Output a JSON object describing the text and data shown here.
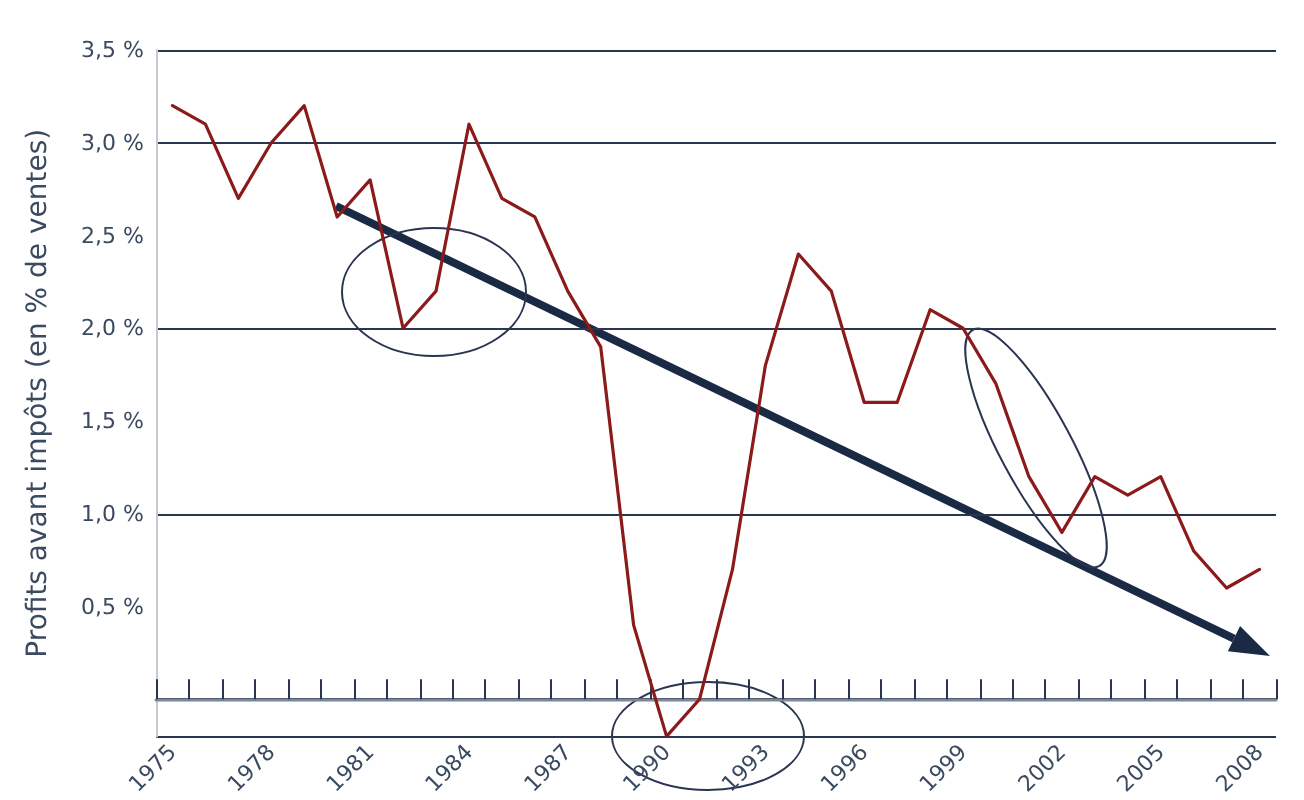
{
  "chart_data": {
    "type": "line",
    "ylabel": "Profits avant impôts (en % de ventes)",
    "categories": [
      "1975",
      null,
      null,
      "1978",
      null,
      null,
      "1981",
      null,
      null,
      "1984",
      null,
      null,
      "1987",
      null,
      null,
      "1990",
      null,
      null,
      "1993",
      null,
      null,
      "1996",
      null,
      null,
      "1999",
      null,
      null,
      "2002",
      null,
      null,
      "2005",
      null,
      null,
      "2008"
    ],
    "series": [
      {
        "color": "#8b1a1a",
        "values": [
          3.2,
          3.1,
          2.7,
          3.0,
          3.2,
          2.6,
          2.8,
          2.0,
          2.2,
          3.1,
          2.7,
          2.6,
          2.2,
          1.9,
          0.4,
          -0.2,
          0.0,
          0.7,
          1.8,
          2.4,
          2.2,
          1.6,
          1.6,
          2.1,
          2.0,
          1.7,
          1.2,
          0.9,
          1.2,
          1.1,
          1.2,
          0.8,
          0.6,
          0.7
        ]
      }
    ],
    "ylim": [
      -0.2,
      3.5
    ],
    "yticks": [
      {
        "value": 0.5,
        "label": "0,5 %"
      },
      {
        "value": 1.0,
        "label": "1,0 %"
      },
      {
        "value": 1.5,
        "label": "1,5 %"
      },
      {
        "value": 2.0,
        "label": "2,0 %"
      },
      {
        "value": 2.5,
        "label": "2,5 %"
      },
      {
        "value": 3.0,
        "label": "3,0 %"
      },
      {
        "value": 3.5,
        "label": "3,5 %"
      }
    ],
    "grid": "y",
    "marker": "none",
    "line_style": "solid"
  }
}
